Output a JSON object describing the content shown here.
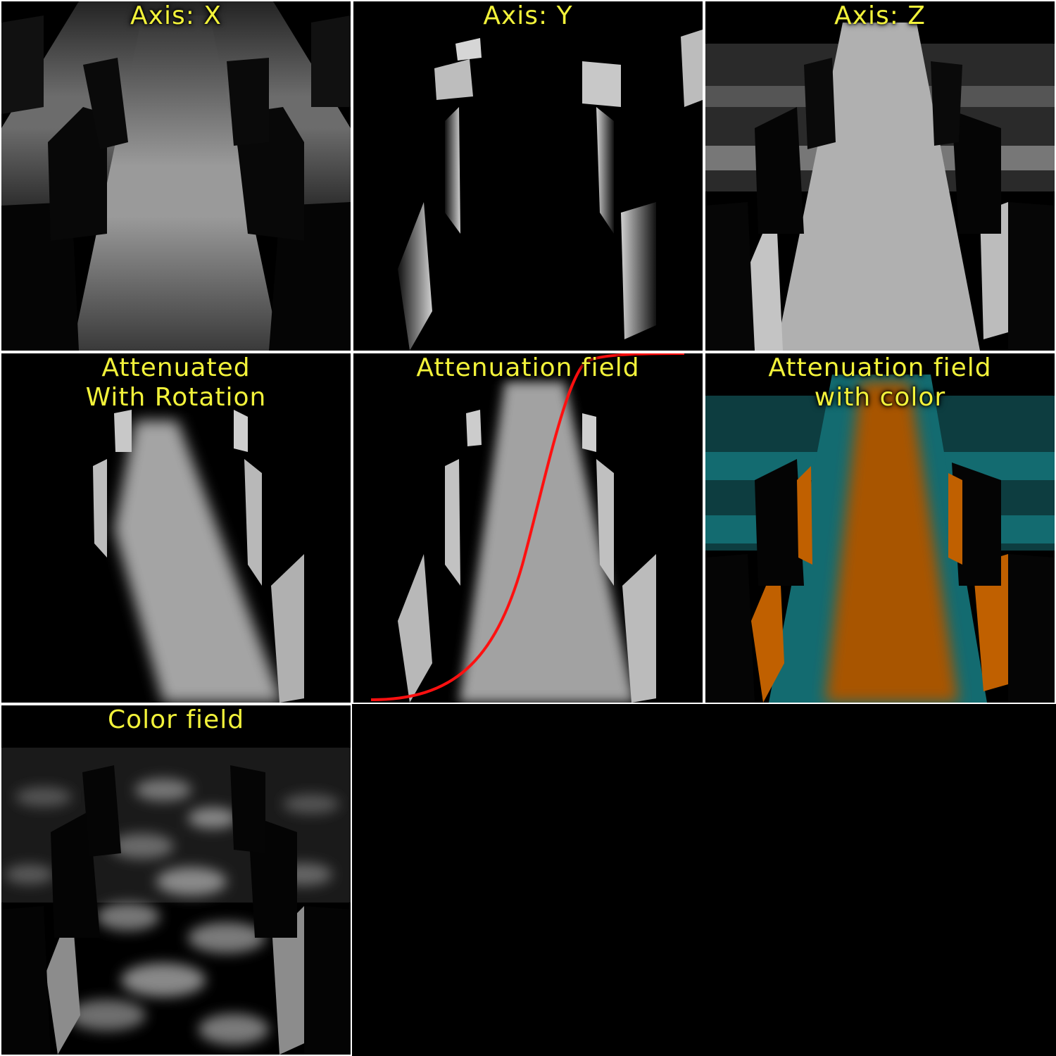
{
  "panels": [
    {
      "id": "axis-x",
      "label": "Axis: X",
      "floor_color": "#9a9a9a",
      "wall_color": "#9a9a9a"
    },
    {
      "id": "axis-y",
      "label": "Axis: Y",
      "floor_color": "#000000",
      "wall_color": "#c8c8c8"
    },
    {
      "id": "axis-z",
      "label": "Axis: Z",
      "floor_color": "#b4b4b4",
      "wall_color": "#b4b4b4"
    },
    {
      "id": "attenuated-rotation",
      "label": "Attenuated\nWith Rotation",
      "floor_color": "#a8a8a8",
      "wall_color": "#c0c0c0"
    },
    {
      "id": "attenuation-field",
      "label": "Attenuation field",
      "floor_color": "#a8a8a8",
      "wall_color": "#c8c8c8",
      "curve_color": "#ff1010"
    },
    {
      "id": "attenuation-field-color",
      "label": "Attenuation field\nwith color",
      "floor_color": "#a85400",
      "wall_color": "#c86400",
      "accent_color": "#136b70"
    },
    {
      "id": "color-field",
      "label": "Color field",
      "floor_color": "#7a7a7a",
      "wall_color": "#9a9a9a"
    }
  ],
  "label_color": "#f2f23a",
  "separator_color": "#ffffff"
}
